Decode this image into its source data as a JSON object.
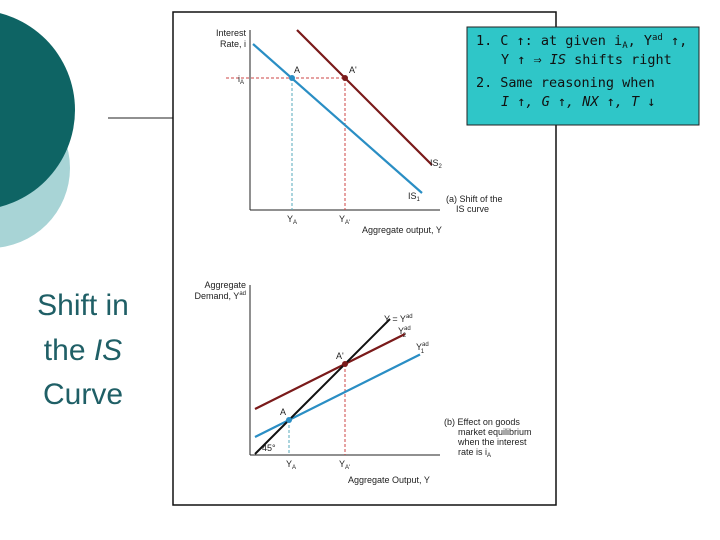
{
  "slide": {
    "title": {
      "line1": "Shift in",
      "line2_a": "the ",
      "line2_b": "IS",
      "line3": "Curve"
    }
  },
  "callout": {
    "item1": {
      "number": "1.",
      "line1_a": "C ↑: at given i",
      "line1_sub": "A",
      "line1_b": ", Y",
      "line1_sup": "ad",
      "line1_c": " ↑,",
      "line2_a": "Y ↑ ⇒ ",
      "line2_b": "IS",
      "line2_c": " shifts right"
    },
    "item2": {
      "number": "2.",
      "line1": "Same reasoning when",
      "line2": "I ↑, G ↑, NX ↑, T ↓"
    }
  },
  "panel_a": {
    "y_label": {
      "line1": "Interest",
      "line2": "Rate, i"
    },
    "i_a": {
      "main": "i",
      "sub": "A"
    },
    "point_a": "A",
    "point_a_prime": "A'",
    "is2": {
      "main": "IS",
      "sub": "2"
    },
    "is1": {
      "main": "IS",
      "sub": "1"
    },
    "y_a": {
      "main": "Y",
      "sub": "A"
    },
    "y_a_prime": {
      "main": "Y",
      "sub": "A'"
    },
    "x_label": "Aggregate output, Y",
    "caption": {
      "line1": "(a) Shift of the",
      "line2": "IS curve"
    }
  },
  "panel_b": {
    "y_label": {
      "line1": "Aggregate",
      "line2_main": "Demand, Y",
      "line2_sup": "ad"
    },
    "y_eq": {
      "main": "Y = Y",
      "sup": "ad"
    },
    "yad2": {
      "main": "Y",
      "sup": "ad",
      "sub": "2"
    },
    "yad1": {
      "main": "Y",
      "sup": "ad",
      "sub": "1"
    },
    "point_a_prime": "A'",
    "point_a": "A",
    "angle": "45°",
    "y_a": {
      "main": "Y",
      "sub": "A"
    },
    "y_a_prime": {
      "main": "Y",
      "sub": "A'"
    },
    "x_label": "Aggregate Output, Y",
    "caption": {
      "line1": "(b) Effect on goods",
      "line2": "market equilibrium",
      "line3": "when the interest",
      "line4_main": "rate is i",
      "line4_sub": "A"
    }
  }
}
